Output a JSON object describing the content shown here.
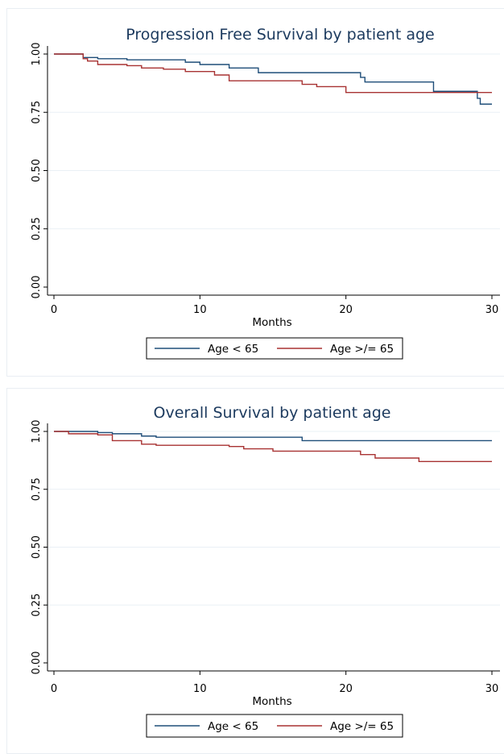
{
  "chart_data": [
    {
      "type": "line",
      "title": "Progression Free Survival by patient age",
      "xlabel": "Months",
      "ylabel": "",
      "xlim": [
        0,
        30
      ],
      "ylim": [
        0,
        1
      ],
      "x_ticks": [
        "0",
        "10",
        "20",
        "30"
      ],
      "y_ticks": [
        "0.00",
        "0.25",
        "0.50",
        "0.75",
        "1.00"
      ],
      "grid": true,
      "legend_position": "bottom",
      "series": [
        {
          "name": "Age < 65",
          "color": "#1f4e79",
          "step_points": [
            [
              0,
              1.0
            ],
            [
              2,
              0.99
            ],
            [
              2,
              0.985
            ],
            [
              3,
              0.98
            ],
            [
              5,
              0.975
            ],
            [
              9,
              0.965
            ],
            [
              10,
              0.955
            ],
            [
              12,
              0.94
            ],
            [
              14,
              0.92
            ],
            [
              21,
              0.9
            ],
            [
              21.3,
              0.88
            ],
            [
              26,
              0.84
            ],
            [
              29,
              0.81
            ],
            [
              29.2,
              0.785
            ],
            [
              30,
              0.785
            ]
          ]
        },
        {
          "name": "Age >/= 65",
          "color": "#a83232",
          "step_points": [
            [
              0,
              1.0
            ],
            [
              2,
              0.98
            ],
            [
              2.3,
              0.97
            ],
            [
              3,
              0.955
            ],
            [
              5,
              0.95
            ],
            [
              6,
              0.94
            ],
            [
              7.5,
              0.935
            ],
            [
              9,
              0.925
            ],
            [
              11,
              0.91
            ],
            [
              12,
              0.885
            ],
            [
              17,
              0.87
            ],
            [
              18,
              0.86
            ],
            [
              20,
              0.835
            ],
            [
              30,
              0.835
            ]
          ]
        }
      ]
    },
    {
      "type": "line",
      "title": "Overall Survival by patient age",
      "xlabel": "Months",
      "ylabel": "",
      "xlim": [
        0,
        30
      ],
      "ylim": [
        0,
        1
      ],
      "x_ticks": [
        "0",
        "10",
        "20",
        "30"
      ],
      "y_ticks": [
        "0.00",
        "0.25",
        "0.50",
        "0.75",
        "1.00"
      ],
      "grid": true,
      "legend_position": "bottom",
      "series": [
        {
          "name": "Age < 65",
          "color": "#1f4e79",
          "step_points": [
            [
              0,
              1.0
            ],
            [
              3,
              0.995
            ],
            [
              4,
              0.99
            ],
            [
              6,
              0.98
            ],
            [
              7,
              0.975
            ],
            [
              17,
              0.96
            ],
            [
              30,
              0.96
            ]
          ]
        },
        {
          "name": "Age >/= 65",
          "color": "#a83232",
          "step_points": [
            [
              0,
              1.0
            ],
            [
              1,
              0.99
            ],
            [
              3,
              0.985
            ],
            [
              4,
              0.96
            ],
            [
              6,
              0.945
            ],
            [
              7,
              0.94
            ],
            [
              12,
              0.935
            ],
            [
              13,
              0.925
            ],
            [
              15,
              0.915
            ],
            [
              21,
              0.9
            ],
            [
              22,
              0.885
            ],
            [
              25,
              0.87
            ],
            [
              30,
              0.87
            ]
          ]
        }
      ]
    }
  ]
}
